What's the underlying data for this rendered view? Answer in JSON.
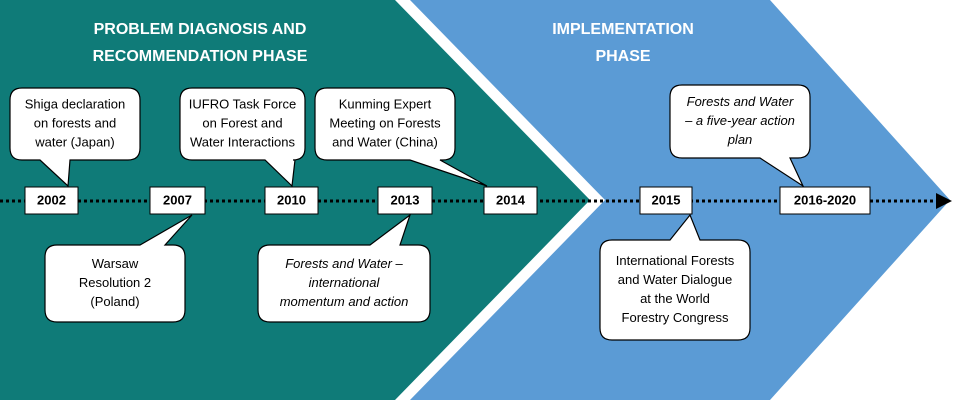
{
  "phases": [
    {
      "title_lines": [
        "PROBLEM DIAGNOSIS AND",
        "RECOMMENDATION PHASE"
      ]
    },
    {
      "title_lines": [
        "IMPLEMENTATION",
        "PHASE"
      ]
    }
  ],
  "years": [
    "2002",
    "2007",
    "2010",
    "2013",
    "2014",
    "2015",
    "2016-2020"
  ],
  "events": [
    {
      "lines": [
        "Shiga declaration",
        "on forests and",
        "water (Japan)"
      ],
      "italic": false
    },
    {
      "lines": [
        "IUFRO Task Force",
        "on Forest and",
        "Water Interactions"
      ],
      "italic": false
    },
    {
      "lines": [
        "Kunming Expert",
        "Meeting on Forests",
        "and Water (China)"
      ],
      "italic": false
    },
    {
      "lines": [
        "Warsaw",
        "Resolution 2",
        "(Poland)"
      ],
      "italic": false
    },
    {
      "lines": [
        "Forests and Water –",
        "international",
        "momentum and action"
      ],
      "italic": true
    },
    {
      "lines": [
        "Forests and Water",
        "– a five-year action",
        "plan"
      ],
      "italic": true
    },
    {
      "lines": [
        "International Forests",
        "and Water Dialogue",
        "at the World",
        "Forestry Congress"
      ],
      "italic": false
    }
  ]
}
